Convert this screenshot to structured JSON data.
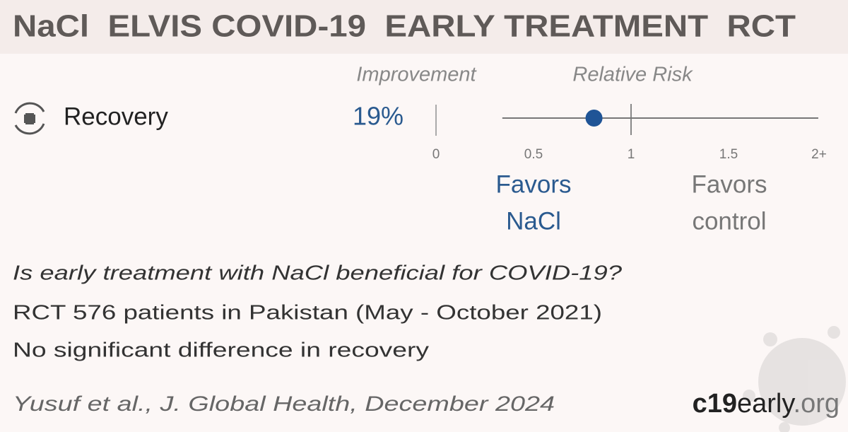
{
  "header": {
    "title": "NaCl  ELVIS COVID-19  EARLY TREATMENT  RCT"
  },
  "chart_data": {
    "type": "forest",
    "column_headers": [
      "Improvement",
      "Relative Risk"
    ],
    "categories": [
      "Recovery"
    ],
    "improvement_labels": [
      "19%"
    ],
    "values": [
      0.81
    ],
    "ci_low": [
      0.34
    ],
    "ci_high": [
      1.96
    ],
    "color": "#1f5496",
    "xlim": [
      0,
      2
    ],
    "xticks": [
      0,
      0.5,
      1,
      1.5,
      {
        "value": 2,
        "label": "2+"
      }
    ],
    "favors": [
      "Favors",
      "NaCl",
      "Favors",
      "control"
    ]
  },
  "summary": {
    "question": "Is early treatment with NaCl beneficial for COVID-19?",
    "details": "RCT 576 patients in Pakistan (May - October 2021)",
    "conclusion": "No significant difference in recovery"
  },
  "footer": {
    "citation": "Yusuf et al., J. Global Health, December 2024",
    "brand": [
      "c19",
      "early",
      ".org"
    ]
  }
}
